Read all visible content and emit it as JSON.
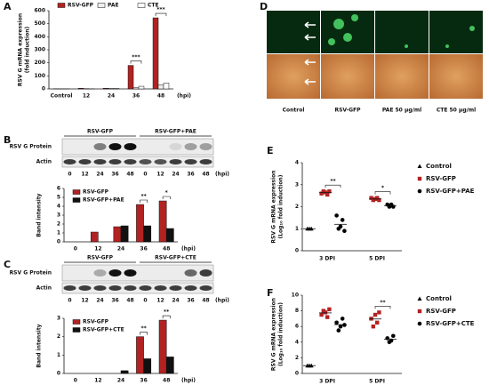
{
  "panels": [
    "A",
    "B",
    "C",
    "D",
    "E",
    "F"
  ],
  "blots": [
    {
      "groups": [
        "RSV-GFP",
        "RSV-GFP+PAE"
      ],
      "rows": [
        "RSV G Protein",
        "Actin"
      ],
      "lanes": [
        "0",
        "12",
        "24",
        "36",
        "48",
        "0",
        "12",
        "24",
        "36",
        "48"
      ],
      "unit": "(hpi)"
    },
    {
      "groups": [
        "RSV-GFP",
        "RSV-GFP+CTE"
      ],
      "rows": [
        "RSV G Protein",
        "Actin"
      ],
      "lanes": [
        "0",
        "12",
        "24",
        "36",
        "48",
        "0",
        "12",
        "24",
        "36",
        "48"
      ],
      "unit": "(hpi)"
    }
  ],
  "images": {
    "labels": [
      "Control",
      "RSV-GFP",
      "PAE 50 μg/ml",
      "CTE 50 μg/ml"
    ]
  },
  "chart_data": [
    {
      "type": "bar",
      "y_label": [
        "RSV G mRNA expression",
        "(fold induction)"
      ],
      "x_label": "(hpi)",
      "categories": [
        "Control",
        "12",
        "24",
        "36",
        "48"
      ],
      "series": [
        {
          "name": "RSV-GFP",
          "color": "#b22222",
          "values": [
            1,
            5,
            5,
            180,
            545
          ]
        },
        {
          "name": "PAE",
          "color": "#eeeeee",
          "values": [
            1,
            2,
            3,
            10,
            30
          ]
        },
        {
          "name": "CTE",
          "color": "#ffffff",
          "values": [
            1,
            1,
            3,
            20,
            45
          ]
        }
      ],
      "ylim": [
        0,
        600
      ],
      "yticks": [
        0,
        100,
        200,
        300,
        400,
        500,
        600
      ],
      "annotations": [
        {
          "label": "***",
          "category": "36"
        },
        {
          "label": "***",
          "category": "48"
        }
      ],
      "legend": "top"
    },
    {
      "type": "bar",
      "y_label": "Band intensity",
      "x_label": "(hpi)",
      "categories": [
        "0",
        "12",
        "24",
        "36",
        "48"
      ],
      "series": [
        {
          "name": "RSV-GFP",
          "color": "#b22222",
          "values": [
            0,
            1.1,
            1.7,
            4.2,
            4.6
          ]
        },
        {
          "name": "RSV-GFP+PAE",
          "color": "#111111",
          "values": [
            0,
            0,
            1.8,
            1.8,
            1.5
          ]
        }
      ],
      "ylim": [
        0,
        6
      ],
      "yticks": [
        0,
        1,
        2,
        3,
        4,
        5,
        6
      ],
      "annotations": [
        {
          "label": "**",
          "category": "36"
        },
        {
          "label": "*",
          "category": "48"
        }
      ],
      "legend": "top-left"
    },
    {
      "type": "bar",
      "y_label": "Band intensity",
      "x_label": "(hpi)",
      "categories": [
        "0",
        "12",
        "24",
        "36",
        "48"
      ],
      "series": [
        {
          "name": "RSV-GFP",
          "color": "#b22222",
          "values": [
            0,
            0,
            0,
            2.0,
            2.9
          ]
        },
        {
          "name": "RSV-GFP+CTE",
          "color": "#111111",
          "values": [
            0,
            0,
            0.15,
            0.8,
            0.9
          ]
        }
      ],
      "ylim": [
        0,
        3
      ],
      "yticks": [
        0,
        1,
        2,
        3
      ],
      "annotations": [
        {
          "label": "**",
          "category": "36"
        },
        {
          "label": "**",
          "category": "48"
        }
      ],
      "legend": "top-left"
    },
    {
      "type": "scatter",
      "y_label": [
        "RSV G mRNA expression",
        "(Log₁₀ fold induction)"
      ],
      "categories": [
        "3 DPI",
        "5 DPI"
      ],
      "series": [
        {
          "name": "Control",
          "color": "#000000",
          "marker": "triangle",
          "values": [
            [
              1,
              1,
              1
            ],
            null
          ]
        },
        {
          "name": "RSV-GFP",
          "color": "#b22222",
          "marker": "square",
          "values": [
            [
              2.6,
              2.7,
              2.65,
              2.55,
              2.7
            ],
            [
              2.4,
              2.3,
              2.35,
              2.4,
              2.3
            ]
          ]
        },
        {
          "name": "RSV-GFP+PAE",
          "color": "#000000",
          "marker": "circle",
          "values": [
            [
              1.6,
              1.0,
              1.1,
              1.4,
              0.9
            ],
            [
              2.1,
              2.0,
              2.1,
              2.0
            ]
          ]
        }
      ],
      "ylim": [
        0,
        4
      ],
      "yticks": [
        0,
        1,
        2,
        3,
        4
      ],
      "annotations": [
        {
          "label": "**",
          "category": "3 DPI"
        },
        {
          "label": "*",
          "category": "5 DPI"
        }
      ],
      "legend": "right"
    },
    {
      "type": "scatter",
      "y_label": [
        "RSV G mRNA expression",
        "(Log₁₀ fold induction)"
      ],
      "categories": [
        "3 DPI",
        "5 DPI"
      ],
      "series": [
        {
          "name": "Control",
          "color": "#000000",
          "marker": "triangle",
          "values": [
            [
              1,
              1,
              1
            ],
            null
          ]
        },
        {
          "name": "RSV-GFP",
          "color": "#b22222",
          "marker": "square",
          "values": [
            [
              7.5,
              8,
              7.8,
              7.2,
              8.2
            ],
            [
              7,
              6,
              7.5,
              6.5,
              7.8
            ]
          ]
        },
        {
          "name": "RSV-GFP+CTE",
          "color": "#000000",
          "marker": "circle",
          "values": [
            [
              6.5,
              5.5,
              6,
              7,
              6.2
            ],
            [
              4.5,
              4,
              4.2,
              4.8
            ]
          ]
        }
      ],
      "ylim": [
        0,
        10
      ],
      "yticks": [
        0,
        2,
        4,
        6,
        8,
        10
      ],
      "annotations": [
        {
          "label": "**",
          "category": "5 DPI"
        }
      ],
      "legend": "right"
    }
  ]
}
